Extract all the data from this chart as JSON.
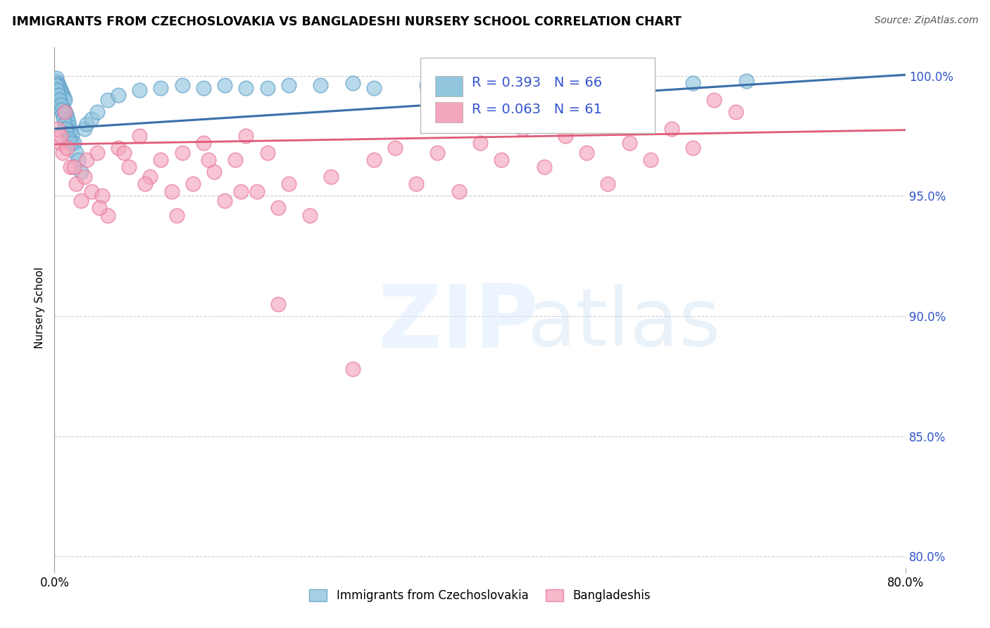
{
  "title": "IMMIGRANTS FROM CZECHOSLOVAKIA VS BANGLADESHI NURSERY SCHOOL CORRELATION CHART",
  "source": "Source: ZipAtlas.com",
  "ylabel": "Nursery School",
  "xmin": 0.0,
  "xmax": 80.0,
  "ymin": 79.5,
  "ymax": 101.2,
  "ytick_values": [
    100.0,
    95.0,
    90.0,
    85.0,
    80.0
  ],
  "legend1_r": "R = 0.393",
  "legend1_n": "N = 66",
  "legend2_r": "R = 0.063",
  "legend2_n": "N = 61",
  "blue_color": "#92c5de",
  "pink_color": "#f4a6bd",
  "blue_edge_color": "#5b9ec9",
  "pink_edge_color": "#e87499",
  "blue_line_color": "#3a6fa8",
  "pink_line_color": "#e05a78",
  "legend_label1": "Immigrants from Czechoslovakia",
  "legend_label2": "Bangladeshis",
  "blue_x": [
    0.1,
    0.2,
    0.2,
    0.3,
    0.3,
    0.4,
    0.4,
    0.5,
    0.5,
    0.6,
    0.6,
    0.7,
    0.7,
    0.8,
    0.8,
    0.9,
    0.9,
    1.0,
    1.0,
    1.1,
    1.2,
    1.3,
    1.4,
    1.5,
    1.6,
    1.8,
    2.0,
    2.2,
    2.5,
    2.8,
    3.0,
    3.5,
    4.0,
    5.0,
    6.0,
    8.0,
    10.0,
    12.0,
    14.0,
    16.0,
    18.0,
    20.0,
    22.0,
    25.0,
    28.0,
    30.0,
    35.0,
    40.0,
    45.0,
    50.0,
    55.0,
    60.0,
    65.0,
    0.15,
    0.25,
    0.35,
    0.45,
    0.55,
    0.65,
    0.75,
    0.85,
    0.95,
    1.05,
    1.15,
    1.35,
    1.55
  ],
  "blue_y": [
    99.8,
    99.9,
    99.5,
    99.7,
    99.3,
    99.6,
    99.2,
    99.5,
    99.0,
    99.4,
    98.9,
    99.3,
    98.8,
    99.2,
    98.7,
    99.1,
    98.6,
    99.0,
    98.5,
    98.4,
    98.3,
    98.1,
    97.9,
    97.7,
    97.5,
    97.2,
    96.8,
    96.5,
    96.0,
    97.8,
    98.0,
    98.2,
    98.5,
    99.0,
    99.2,
    99.4,
    99.5,
    99.6,
    99.5,
    99.6,
    99.5,
    99.5,
    99.6,
    99.6,
    99.7,
    99.5,
    99.6,
    99.5,
    99.6,
    99.5,
    99.6,
    99.7,
    99.8,
    99.6,
    99.4,
    99.2,
    99.0,
    98.8,
    98.6,
    98.4,
    98.2,
    98.0,
    97.8,
    97.6,
    97.4,
    97.2
  ],
  "pink_x": [
    0.3,
    0.5,
    0.8,
    1.0,
    1.2,
    1.5,
    2.0,
    2.5,
    3.0,
    3.5,
    4.0,
    4.5,
    5.0,
    6.0,
    7.0,
    8.0,
    9.0,
    10.0,
    11.0,
    12.0,
    13.0,
    14.0,
    15.0,
    16.0,
    17.0,
    18.0,
    19.0,
    20.0,
    21.0,
    22.0,
    24.0,
    26.0,
    28.0,
    30.0,
    32.0,
    34.0,
    36.0,
    38.0,
    40.0,
    42.0,
    44.0,
    46.0,
    48.0,
    50.0,
    52.0,
    54.0,
    56.0,
    58.0,
    60.0,
    62.0,
    64.0,
    0.6,
    1.8,
    2.8,
    4.2,
    6.5,
    8.5,
    11.5,
    14.5,
    17.5,
    21.0
  ],
  "pink_y": [
    97.8,
    97.2,
    96.8,
    98.5,
    97.0,
    96.2,
    95.5,
    94.8,
    96.5,
    95.2,
    96.8,
    95.0,
    94.2,
    97.0,
    96.2,
    97.5,
    95.8,
    96.5,
    95.2,
    96.8,
    95.5,
    97.2,
    96.0,
    94.8,
    96.5,
    97.5,
    95.2,
    96.8,
    94.5,
    95.5,
    94.2,
    95.8,
    87.8,
    96.5,
    97.0,
    95.5,
    96.8,
    95.2,
    97.2,
    96.5,
    97.8,
    96.2,
    97.5,
    96.8,
    95.5,
    97.2,
    96.5,
    97.8,
    97.0,
    99.0,
    98.5,
    97.5,
    96.2,
    95.8,
    94.5,
    96.8,
    95.5,
    94.2,
    96.5,
    95.2,
    90.5
  ]
}
